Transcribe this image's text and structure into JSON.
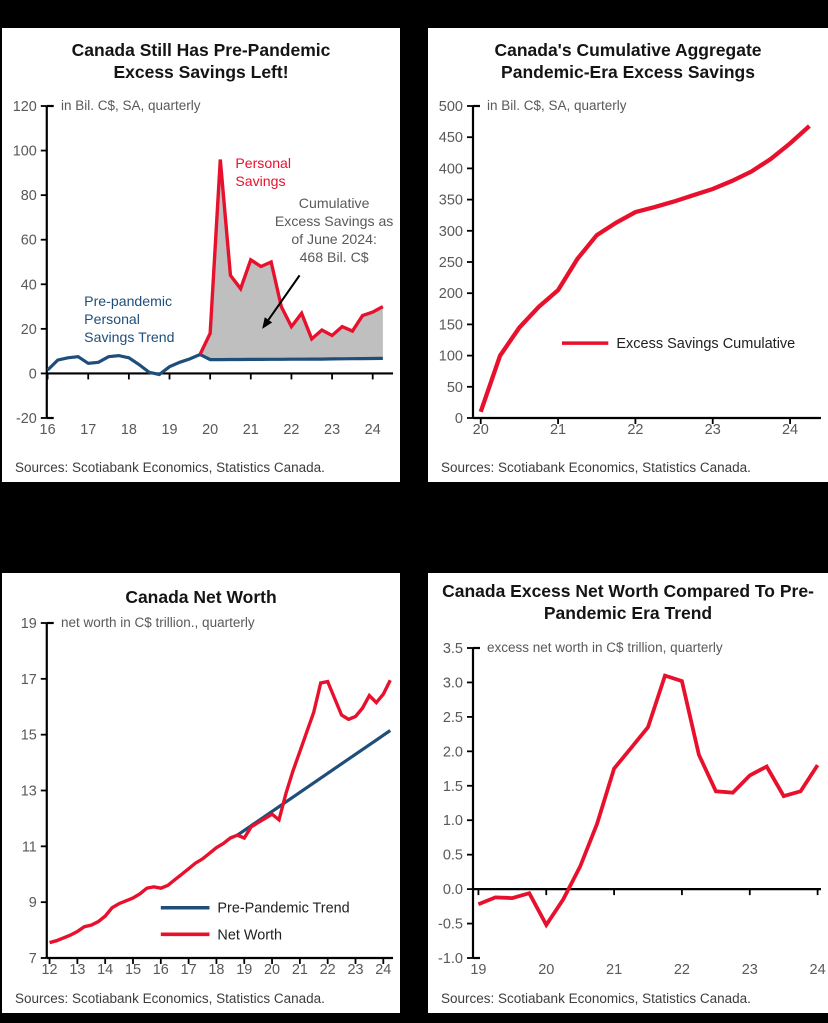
{
  "colors": {
    "red": "#e8112d",
    "navy": "#1f4e7a",
    "fill_gray": "#bfbfbf",
    "axis": "#000000",
    "tick_text": "#595959",
    "legend_text": "#1f1f1f",
    "annotation_gray": "#595959",
    "background": "#000000",
    "panel_background": "#ffffff"
  },
  "chart_data": [
    {
      "type": "line",
      "title": "Canada Still Has Pre-Pandemic Excess Savings Left!",
      "subtitle": "in Bil. C$, SA, quarterly",
      "source": "Sources: Scotiabank Economics, Statistics Canada.",
      "xlim": [
        15.98,
        24.5
      ],
      "ylim": [
        -20,
        120
      ],
      "x_axis_at": 0,
      "xticks": [
        16,
        17,
        18,
        19,
        20,
        21,
        22,
        23,
        24
      ],
      "xtick_labels": [
        "16",
        "17",
        "18",
        "19",
        "20",
        "21",
        "22",
        "23",
        "24"
      ],
      "yticks": [
        -20,
        0,
        20,
        40,
        60,
        80,
        100,
        120
      ],
      "ytick_labels": [
        "-20",
        "0",
        "20",
        "40",
        "60",
        "80",
        "100",
        "120"
      ],
      "series": [
        {
          "name": "Pre-pandemic Personal Savings Trend",
          "color": "navy",
          "x_start": 16.0,
          "x_step": 0.25,
          "values": [
            1.5,
            6,
            7,
            7.5,
            4.5,
            5,
            7.5,
            8,
            7,
            4,
            0.5,
            -0.5,
            3,
            5,
            6.5,
            8.5,
            6.2,
            6.2,
            6.25,
            6.25,
            6.3,
            6.3,
            6.35,
            6.35,
            6.4,
            6.4,
            6.45,
            6.45,
            6.5,
            6.55,
            6.6,
            6.65,
            6.7,
            6.75
          ]
        },
        {
          "name": "Personal Savings",
          "color": "red",
          "x_start": 19.75,
          "x_step": 0.25,
          "values": [
            8.5,
            18,
            96,
            44,
            38,
            51,
            48,
            50,
            30,
            21,
            27,
            15.5,
            19.5,
            17,
            21,
            19,
            26,
            27.5,
            30
          ]
        }
      ],
      "fill_between": {
        "upper": 1,
        "lower": 0,
        "lower_from_x": 19.75,
        "color": "fill_gray"
      },
      "annotations": [
        {
          "lines": [
            "Personal",
            "Savings"
          ],
          "x": 20.62,
          "y_top": 98,
          "anchor": "start",
          "color": "red"
        },
        {
          "lines": [
            "Pre-pandemic",
            "Personal",
            "Savings Trend"
          ],
          "x": 16.9,
          "y_top": 36,
          "anchor": "start",
          "color": "navy"
        },
        {
          "lines": [
            "Cumulative",
            "Excess Savings as",
            "of June 2024:",
            "468 Bil. C$"
          ],
          "x": 23.05,
          "y_top": 80,
          "anchor": "middle",
          "color": "gray"
        }
      ],
      "arrow": {
        "x1": 22.2,
        "y1": 44,
        "x2": 21.28,
        "y2": 20
      }
    },
    {
      "type": "line",
      "title": "Canada's Cumulative Aggregate Pandemic-Era Excess Savings",
      "subtitle": "in Bil. C$, SA, quarterly",
      "source": "Sources: Scotiabank Economics, Statistics Canada.",
      "xlim": [
        19.9,
        24.4
      ],
      "ylim": [
        0,
        500
      ],
      "x_axis_at": 0,
      "xticks": [
        20,
        21,
        22,
        23,
        24
      ],
      "xtick_labels": [
        "20",
        "21",
        "22",
        "23",
        "24"
      ],
      "yticks": [
        0,
        50,
        100,
        150,
        200,
        250,
        300,
        350,
        400,
        450,
        500
      ],
      "ytick_labels": [
        "0",
        "50",
        "100",
        "150",
        "200",
        "250",
        "300",
        "350",
        "400",
        "450",
        "500"
      ],
      "series": [
        {
          "name": "Excess Savings Cumulative",
          "color": "red",
          "x_start": 20.0,
          "x_step": 0.25,
          "values": [
            10,
            100,
            145,
            178,
            205,
            255,
            293,
            313,
            330,
            338,
            347,
            357,
            367,
            380,
            395,
            415,
            440,
            468
          ]
        }
      ],
      "legend": [
        {
          "x1": 21.05,
          "x2": 21.65,
          "y": 120,
          "label": "Excess Savings Cumulative",
          "color": "red"
        }
      ]
    },
    {
      "type": "line",
      "title": "Canada Net Worth",
      "subtitle": "net worth in C$ trillion., quarterly",
      "source": "Sources: Scotiabank Economics, Statistics Canada.",
      "xlim": [
        11.9,
        24.35
      ],
      "ylim": [
        7,
        19
      ],
      "x_axis_at": 7,
      "xticks": [
        12,
        13,
        14,
        15,
        16,
        17,
        18,
        19,
        20,
        21,
        22,
        23,
        24
      ],
      "xtick_labels": [
        "12",
        "13",
        "14",
        "15",
        "16",
        "17",
        "18",
        "19",
        "20",
        "21",
        "22",
        "23",
        "24"
      ],
      "yticks": [
        7,
        9,
        11,
        13,
        15,
        17,
        19
      ],
      "ytick_labels": [
        "7",
        "9",
        "11",
        "13",
        "15",
        "17",
        "19"
      ],
      "series": [
        {
          "name": "Pre-Pandemic Trend",
          "color": "navy",
          "points": [
            [
              18.75,
              11.4
            ],
            [
              24.25,
              15.15
            ]
          ]
        },
        {
          "name": "Net Worth",
          "color": "red",
          "x_start": 12.0,
          "x_step": 0.25,
          "values": [
            7.55,
            7.62,
            7.72,
            7.82,
            7.95,
            8.12,
            8.18,
            8.3,
            8.5,
            8.8,
            8.95,
            9.05,
            9.15,
            9.3,
            9.5,
            9.55,
            9.5,
            9.6,
            9.8,
            10.0,
            10.2,
            10.4,
            10.55,
            10.75,
            10.95,
            11.1,
            11.3,
            11.4,
            11.3,
            11.7,
            11.85,
            12.0,
            12.15,
            11.95,
            12.9,
            13.7,
            14.4,
            15.1,
            15.8,
            16.85,
            16.9,
            16.3,
            15.7,
            15.55,
            15.65,
            15.95,
            16.4,
            16.15,
            16.45,
            16.95
          ]
        }
      ],
      "legend": [
        {
          "x1": 16.0,
          "x2": 17.75,
          "y": 8.8,
          "label": "Pre-Pandemic Trend",
          "color": "navy"
        },
        {
          "x1": 16.0,
          "x2": 17.75,
          "y": 7.85,
          "label": "Net Worth",
          "color": "red"
        }
      ]
    },
    {
      "type": "line",
      "title": "Canada Excess Net Worth Compared To Pre-Pandemic Era Trend",
      "subtitle": "excess net worth in C$ trillion, quarterly",
      "source": "Sources: Scotiabank Economics, Statistics Canada.",
      "xlim": [
        18.92,
        24.05
      ],
      "ylim": [
        -1.0,
        3.5
      ],
      "x_axis_at": 0,
      "xticks": [
        19,
        20,
        21,
        22,
        23,
        24
      ],
      "xtick_labels": [
        "19",
        "20",
        "21",
        "22",
        "23",
        "24"
      ],
      "yticks": [
        -1.0,
        -0.5,
        0.0,
        0.5,
        1.0,
        1.5,
        2.0,
        2.5,
        3.0,
        3.5
      ],
      "ytick_labels": [
        "-1.0",
        "-0.5",
        "0.0",
        "0.5",
        "1.0",
        "1.5",
        "2.0",
        "2.5",
        "3.0",
        "3.5"
      ],
      "series": [
        {
          "name": "Excess Net Worth",
          "color": "red",
          "x_start": 19.0,
          "x_step": 0.25,
          "values": [
            -0.22,
            -0.12,
            -0.13,
            -0.06,
            -0.52,
            -0.15,
            0.33,
            0.95,
            1.75,
            2.05,
            2.35,
            3.1,
            3.02,
            1.95,
            1.42,
            1.4,
            1.65,
            1.78,
            1.35,
            1.42,
            1.8
          ]
        }
      ]
    }
  ]
}
